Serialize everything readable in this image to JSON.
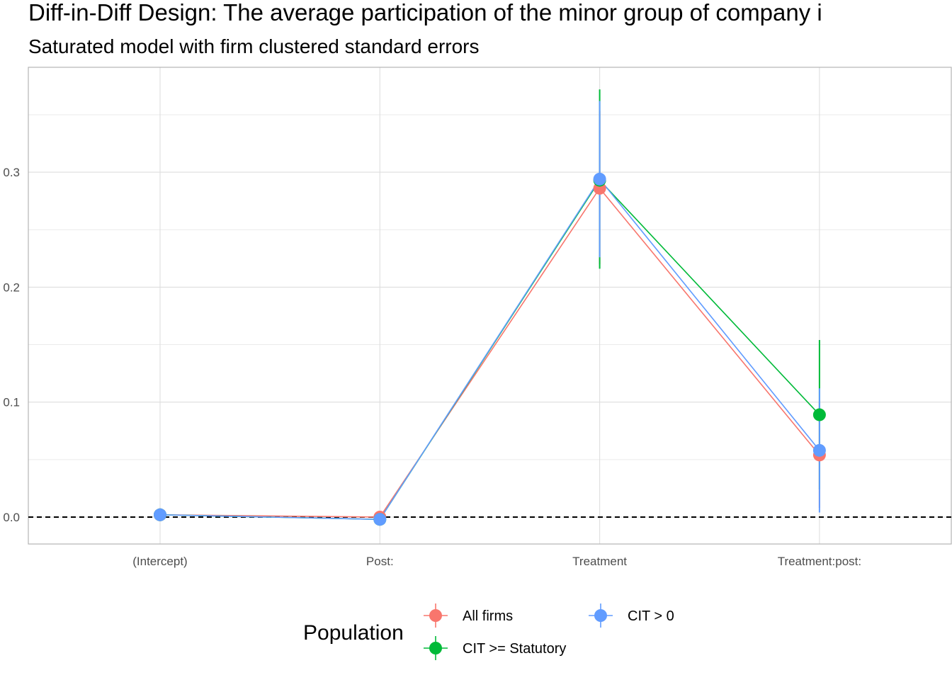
{
  "chart_data": {
    "type": "scatter",
    "title": "Diff-in-Diff Design: The average participation of the minor group of company i",
    "subtitle": "Saturated model with firm clustered standard errors",
    "xlabel": "",
    "ylabel": "",
    "categories": [
      "(Intercept)",
      "Post:",
      "Treatment",
      "Treatment:post:"
    ],
    "ylim": [
      -0.024,
      0.39
    ],
    "y_ticks": [
      0.0,
      0.1,
      0.2,
      0.3
    ],
    "y_tick_labels": [
      "0.0",
      "0.1",
      "0.2",
      "0.3"
    ],
    "grid": true,
    "reference_line": {
      "y": 0,
      "style": "dashed"
    },
    "legend": {
      "title": "Population",
      "position": "bottom"
    },
    "series": [
      {
        "name": "All firms",
        "color": "#F8766D",
        "values": [
          0.002,
          0.0,
          0.286,
          0.054
        ],
        "ci_low": [
          0.0,
          -0.002,
          0.22,
          0.008
        ],
        "ci_high": [
          0.004,
          0.002,
          0.353,
          0.1
        ]
      },
      {
        "name": "CIT >= Statutory",
        "color": "#00BA38",
        "values": [
          0.002,
          -0.002,
          0.293,
          0.089
        ],
        "ci_low": [
          0.0,
          -0.004,
          0.216,
          0.024
        ],
        "ci_high": [
          0.004,
          0.0,
          0.372,
          0.154
        ]
      },
      {
        "name": "CIT > 0",
        "color": "#619CFF",
        "values": [
          0.002,
          -0.002,
          0.294,
          0.058
        ],
        "ci_low": [
          0.0,
          -0.004,
          0.226,
          0.004
        ],
        "ci_high": [
          0.004,
          0.0,
          0.362,
          0.112
        ]
      }
    ],
    "legend_order": [
      "All firms",
      "CIT > 0",
      "CIT >= Statutory"
    ]
  }
}
